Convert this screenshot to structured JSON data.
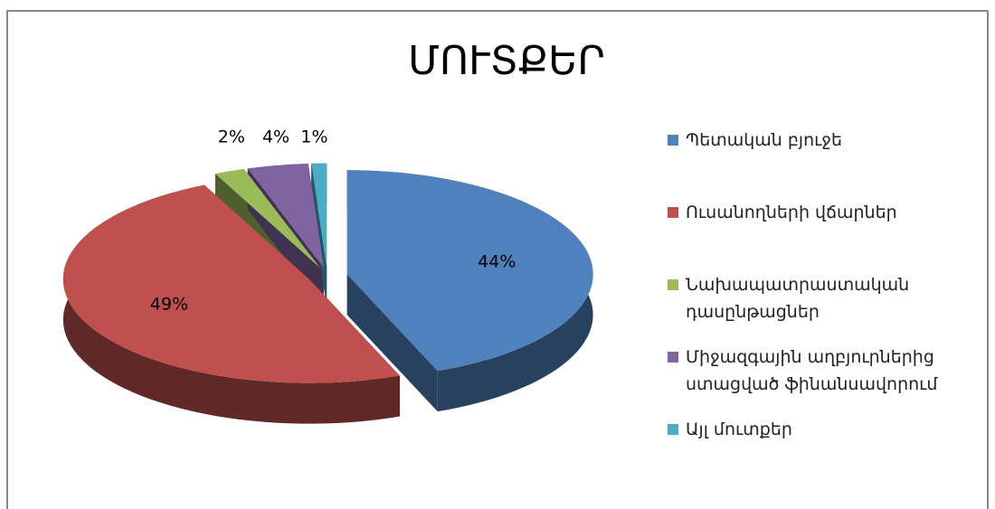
{
  "chart_data": {
    "type": "pie",
    "title": "ՄՈՒՏՔԵՐ",
    "categories": [
      "Պետական բյուջե",
      "Ուսանողների վճարներ",
      "Նախապատրաստական դասընթացներ",
      "Միջազգային աղբյուրներից ստացված ֆինանսավորում",
      "Այլ մուտքեր"
    ],
    "values": [
      44,
      49,
      2,
      4,
      1
    ],
    "value_labels": [
      "44%",
      "49%",
      "2%",
      "4%",
      "1%"
    ],
    "colors": [
      "#4f81bd",
      "#c0504d",
      "#9bbb59",
      "#8064a2",
      "#4bacc6"
    ],
    "legend": "right"
  }
}
